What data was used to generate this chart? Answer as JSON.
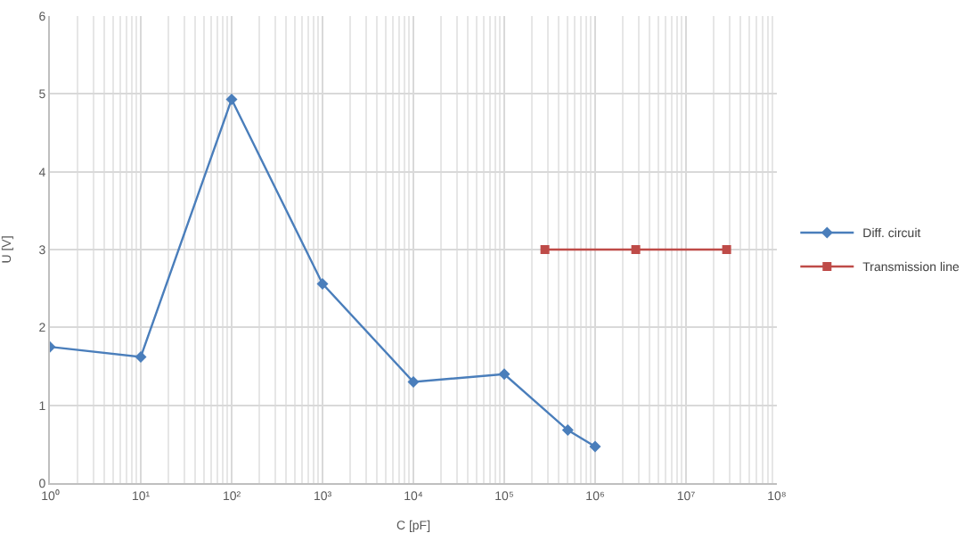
{
  "chart_data": {
    "type": "line",
    "xlabel": "C [pF]",
    "ylabel": "U [V]",
    "log": "x",
    "grid": true,
    "legend": "right",
    "xlim": [
      1,
      100000000
    ],
    "xticks": [
      {
        "value": 1,
        "label": "10⁰"
      },
      {
        "value": 10,
        "label": "10¹"
      },
      {
        "value": 100,
        "label": "10²"
      },
      {
        "value": 1000,
        "label": "10³"
      },
      {
        "value": 10000,
        "label": "10⁴"
      },
      {
        "value": 100000,
        "label": "10⁵"
      },
      {
        "value": 1000000,
        "label": "10⁶"
      },
      {
        "value": 10000000,
        "label": "10⁷"
      },
      {
        "value": 100000000,
        "label": "10⁸"
      }
    ],
    "ylim": [
      0,
      6
    ],
    "yticks": [
      0,
      1,
      2,
      3,
      4,
      5,
      6
    ],
    "series": [
      {
        "name": "Diff. circuit",
        "color": "#4a7ebb",
        "marker": "diamond",
        "x": [
          1,
          10,
          100,
          1000,
          10000,
          100000,
          500000,
          1000000
        ],
        "values": [
          1.75,
          1.62,
          4.93,
          2.56,
          1.3,
          1.4,
          0.68,
          0.47
        ]
      },
      {
        "name": "Transmission line",
        "color": "#be4b48",
        "marker": "square",
        "x": [
          280000,
          2800000,
          28000000
        ],
        "values": [
          3,
          3,
          3
        ]
      }
    ]
  }
}
